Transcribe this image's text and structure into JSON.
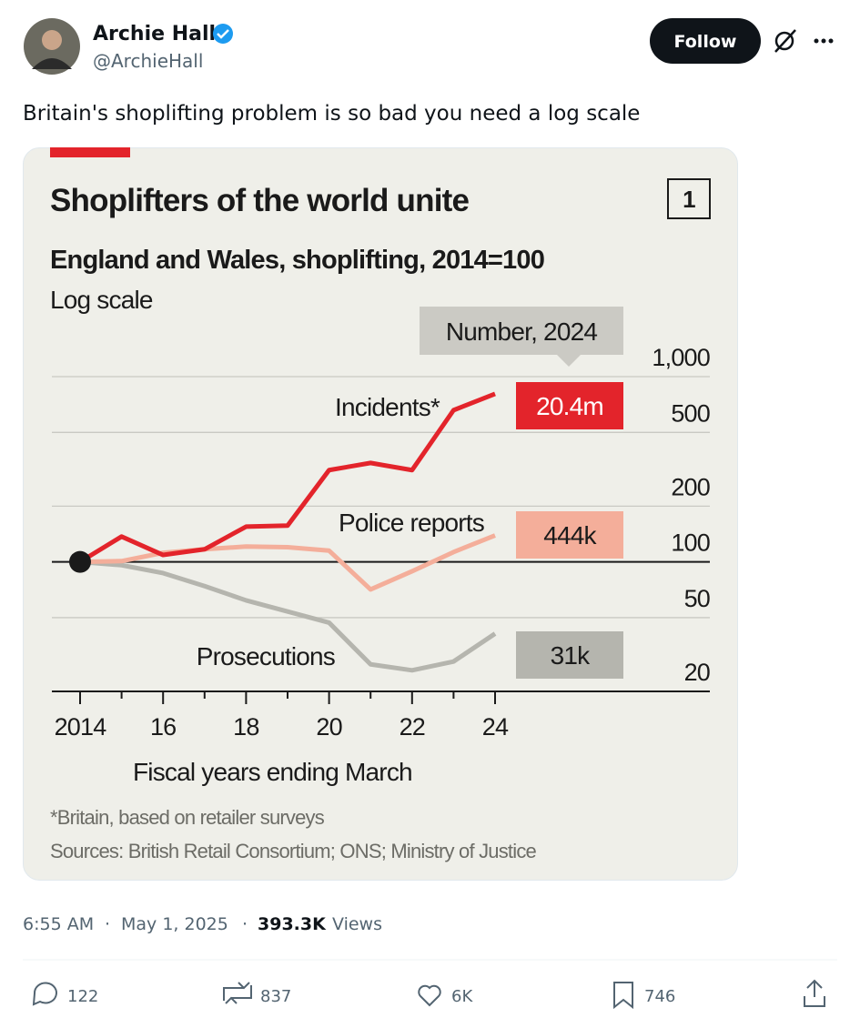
{
  "author": {
    "name": "Archie Hall",
    "handle": "@ArchieHall"
  },
  "follow_button": "Follow",
  "tweet_text": "Britain's shoplifting problem is so bad you need a log scale",
  "meta": {
    "time": "6:55 AM",
    "date": "May 1, 2025",
    "views": "393.3K",
    "views_label": "Views"
  },
  "stats": {
    "replies": "122",
    "reposts": "837",
    "likes": "6K",
    "bookmarks": "746"
  },
  "chart_data": {
    "type": "line",
    "title": "Shoplifters of the world unite",
    "subtitle": "England and Wales, shoplifting, 2014=100",
    "scale_note": "Log scale",
    "chart_number": "1",
    "number_header": "Number, 2024",
    "x_label": "Fiscal years ending March",
    "footnote": "*Britain, based on retailer surveys",
    "source": "Sources: British Retail Consortium; ONS; Ministry of Justice",
    "log_scale": true,
    "x": [
      2014,
      2015,
      2016,
      2017,
      2018,
      2019,
      2020,
      2021,
      2022,
      2023,
      2024
    ],
    "xlim": [
      2014,
      2024
    ],
    "xticks": [
      2014,
      {
        "value": 2016,
        "label": "16"
      },
      {
        "value": 2018,
        "label": "18"
      },
      {
        "value": 2020,
        "label": "20"
      },
      {
        "value": 2022,
        "label": "22"
      },
      {
        "value": 2024,
        "label": "24"
      }
    ],
    "xminor_ticks": [
      2015,
      2017,
      2019,
      2021,
      2023
    ],
    "ylim": [
      20,
      1000
    ],
    "yticks": [
      {
        "value": 1000,
        "label": "1,000"
      },
      500,
      200,
      100,
      50,
      20
    ],
    "series": [
      {
        "name": "Incidents*",
        "color": "#e3242b",
        "values": [
          100,
          137,
          109,
          117,
          155,
          157,
          313,
          342,
          313,
          659,
          807
        ],
        "number_2024": "20.4m"
      },
      {
        "name": "Police reports",
        "color": "#f4ae9a",
        "values": [
          100,
          101,
          112,
          117,
          121,
          120,
          115,
          71,
          89,
          113,
          139
        ],
        "number_2024": "444k"
      },
      {
        "name": "Prosecutions",
        "color": "#b5b5ae",
        "values": [
          100,
          96,
          87,
          74,
          62,
          54,
          47,
          28,
          26,
          29,
          41
        ],
        "number_2024": "31k"
      }
    ]
  }
}
